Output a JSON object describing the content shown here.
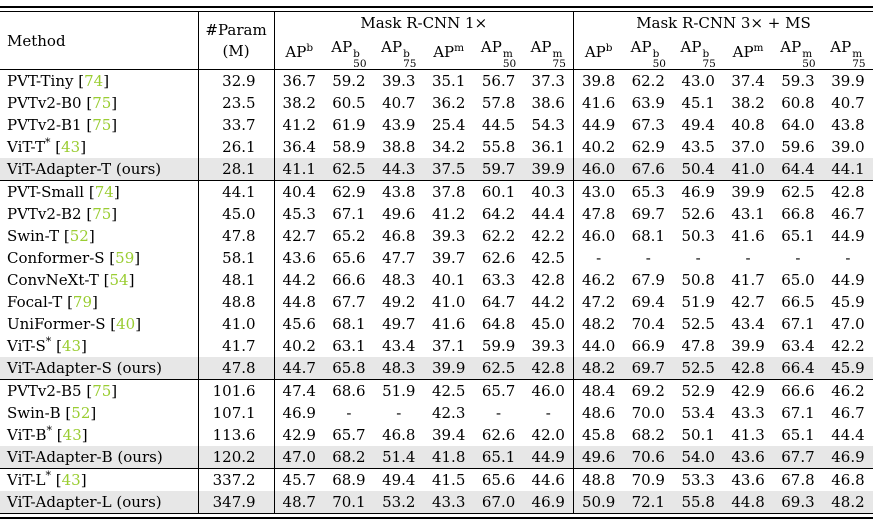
{
  "colors": {
    "citation_green": "#9ACD32",
    "highlight_row": "#E7E7E7",
    "rule_black": "#000000"
  },
  "header": {
    "method_label": "Method",
    "param_line1": "#Param",
    "param_line2": "(M)",
    "block1_label": "Mask R-CNN 1×",
    "block2_label": "Mask R-CNN 3× + MS",
    "metric_base": "AP",
    "metrics": [
      {
        "sup": "b",
        "sub": ""
      },
      {
        "sup": "b",
        "sub": "50"
      },
      {
        "sup": "b",
        "sub": "75"
      },
      {
        "sup": "m",
        "sub": ""
      },
      {
        "sup": "m",
        "sub": "50"
      },
      {
        "sup": "m",
        "sub": "75"
      }
    ],
    "ours_suffix": "(ours)"
  },
  "groups": [
    {
      "rows": [
        {
          "name": "PVT-Tiny",
          "star": false,
          "cite": "74",
          "ours": false,
          "highlight": false,
          "param": "32.9",
          "mask1x": [
            "36.7",
            "59.2",
            "39.3",
            "35.1",
            "56.7",
            "37.3"
          ],
          "mask3x": [
            "39.8",
            "62.2",
            "43.0",
            "37.4",
            "59.3",
            "39.9"
          ]
        },
        {
          "name": "PVTv2-B0",
          "star": false,
          "cite": "75",
          "ours": false,
          "highlight": false,
          "param": "23.5",
          "mask1x": [
            "38.2",
            "60.5",
            "40.7",
            "36.2",
            "57.8",
            "38.6"
          ],
          "mask3x": [
            "41.6",
            "63.9",
            "45.1",
            "38.2",
            "60.8",
            "40.7"
          ]
        },
        {
          "name": "PVTv2-B1",
          "star": false,
          "cite": "75",
          "ours": false,
          "highlight": false,
          "param": "33.7",
          "mask1x": [
            "41.2",
            "61.9",
            "43.9",
            "25.4",
            "44.5",
            "54.3"
          ],
          "mask3x": [
            "44.9",
            "67.3",
            "49.4",
            "40.8",
            "64.0",
            "43.8"
          ]
        },
        {
          "name": "ViT-T",
          "star": true,
          "cite": "43",
          "ours": false,
          "highlight": false,
          "param": "26.1",
          "mask1x": [
            "36.4",
            "58.9",
            "38.8",
            "34.2",
            "55.8",
            "36.1"
          ],
          "mask3x": [
            "40.2",
            "62.9",
            "43.5",
            "37.0",
            "59.6",
            "39.0"
          ]
        },
        {
          "name": "ViT-Adapter-T",
          "star": false,
          "cite": null,
          "ours": true,
          "highlight": true,
          "param": "28.1",
          "mask1x": [
            "41.1",
            "62.5",
            "44.3",
            "37.5",
            "59.7",
            "39.9"
          ],
          "mask3x": [
            "46.0",
            "67.6",
            "50.4",
            "41.0",
            "64.4",
            "44.1"
          ]
        }
      ]
    },
    {
      "rows": [
        {
          "name": "PVT-Small",
          "star": false,
          "cite": "74",
          "ours": false,
          "highlight": false,
          "param": "44.1",
          "mask1x": [
            "40.4",
            "62.9",
            "43.8",
            "37.8",
            "60.1",
            "40.3"
          ],
          "mask3x": [
            "43.0",
            "65.3",
            "46.9",
            "39.9",
            "62.5",
            "42.8"
          ]
        },
        {
          "name": "PVTv2-B2",
          "star": false,
          "cite": "75",
          "ours": false,
          "highlight": false,
          "param": "45.0",
          "mask1x": [
            "45.3",
            "67.1",
            "49.6",
            "41.2",
            "64.2",
            "44.4"
          ],
          "mask3x": [
            "47.8",
            "69.7",
            "52.6",
            "43.1",
            "66.8",
            "46.7"
          ]
        },
        {
          "name": "Swin-T",
          "star": false,
          "cite": "52",
          "ours": false,
          "highlight": false,
          "param": "47.8",
          "mask1x": [
            "42.7",
            "65.2",
            "46.8",
            "39.3",
            "62.2",
            "42.2"
          ],
          "mask3x": [
            "46.0",
            "68.1",
            "50.3",
            "41.6",
            "65.1",
            "44.9"
          ]
        },
        {
          "name": "Conformer-S",
          "star": false,
          "cite": "59",
          "ours": false,
          "highlight": false,
          "param": "58.1",
          "mask1x": [
            "43.6",
            "65.6",
            "47.7",
            "39.7",
            "62.6",
            "42.5"
          ],
          "mask3x": [
            "-",
            "-",
            "-",
            "-",
            "-",
            "-"
          ]
        },
        {
          "name": "ConvNeXt-T",
          "star": false,
          "cite": "54",
          "ours": false,
          "highlight": false,
          "param": "48.1",
          "mask1x": [
            "44.2",
            "66.6",
            "48.3",
            "40.1",
            "63.3",
            "42.8"
          ],
          "mask3x": [
            "46.2",
            "67.9",
            "50.8",
            "41.7",
            "65.0",
            "44.9"
          ]
        },
        {
          "name": "Focal-T",
          "star": false,
          "cite": "79",
          "ours": false,
          "highlight": false,
          "param": "48.8",
          "mask1x": [
            "44.8",
            "67.7",
            "49.2",
            "41.0",
            "64.7",
            "44.2"
          ],
          "mask3x": [
            "47.2",
            "69.4",
            "51.9",
            "42.7",
            "66.5",
            "45.9"
          ]
        },
        {
          "name": "UniFormer-S",
          "star": false,
          "cite": "40",
          "ours": false,
          "highlight": false,
          "param": "41.0",
          "mask1x": [
            "45.6",
            "68.1",
            "49.7",
            "41.6",
            "64.8",
            "45.0"
          ],
          "mask3x": [
            "48.2",
            "70.4",
            "52.5",
            "43.4",
            "67.1",
            "47.0"
          ]
        },
        {
          "name": "ViT-S",
          "star": true,
          "cite": "43",
          "ours": false,
          "highlight": false,
          "param": "41.7",
          "mask1x": [
            "40.2",
            "63.1",
            "43.4",
            "37.1",
            "59.9",
            "39.3"
          ],
          "mask3x": [
            "44.0",
            "66.9",
            "47.8",
            "39.9",
            "63.4",
            "42.2"
          ]
        },
        {
          "name": "ViT-Adapter-S",
          "star": false,
          "cite": null,
          "ours": true,
          "highlight": true,
          "param": "47.8",
          "mask1x": [
            "44.7",
            "65.8",
            "48.3",
            "39.9",
            "62.5",
            "42.8"
          ],
          "mask3x": [
            "48.2",
            "69.7",
            "52.5",
            "42.8",
            "66.4",
            "45.9"
          ]
        }
      ]
    },
    {
      "rows": [
        {
          "name": "PVTv2-B5",
          "star": false,
          "cite": "75",
          "ours": false,
          "highlight": false,
          "param": "101.6",
          "mask1x": [
            "47.4",
            "68.6",
            "51.9",
            "42.5",
            "65.7",
            "46.0"
          ],
          "mask3x": [
            "48.4",
            "69.2",
            "52.9",
            "42.9",
            "66.6",
            "46.2"
          ]
        },
        {
          "name": "Swin-B",
          "star": false,
          "cite": "52",
          "ours": false,
          "highlight": false,
          "param": "107.1",
          "mask1x": [
            "46.9",
            "-",
            "-",
            "42.3",
            "-",
            "-"
          ],
          "mask3x": [
            "48.6",
            "70.0",
            "53.4",
            "43.3",
            "67.1",
            "46.7"
          ]
        },
        {
          "name": "ViT-B",
          "star": true,
          "cite": "43",
          "ours": false,
          "highlight": false,
          "param": "113.6",
          "mask1x": [
            "42.9",
            "65.7",
            "46.8",
            "39.4",
            "62.6",
            "42.0"
          ],
          "mask3x": [
            "45.8",
            "68.2",
            "50.1",
            "41.3",
            "65.1",
            "44.4"
          ]
        },
        {
          "name": "ViT-Adapter-B",
          "star": false,
          "cite": null,
          "ours": true,
          "highlight": true,
          "param": "120.2",
          "mask1x": [
            "47.0",
            "68.2",
            "51.4",
            "41.8",
            "65.1",
            "44.9"
          ],
          "mask3x": [
            "49.6",
            "70.6",
            "54.0",
            "43.6",
            "67.7",
            "46.9"
          ]
        }
      ]
    },
    {
      "rows": [
        {
          "name": "ViT-L",
          "star": true,
          "cite": "43",
          "ours": false,
          "highlight": false,
          "param": "337.2",
          "mask1x": [
            "45.7",
            "68.9",
            "49.4",
            "41.5",
            "65.6",
            "44.6"
          ],
          "mask3x": [
            "48.8",
            "70.9",
            "53.3",
            "43.6",
            "67.8",
            "46.8"
          ]
        },
        {
          "name": "ViT-Adapter-L",
          "star": false,
          "cite": null,
          "ours": true,
          "highlight": true,
          "param": "347.9",
          "mask1x": [
            "48.7",
            "70.1",
            "53.2",
            "43.3",
            "67.0",
            "46.9"
          ],
          "mask3x": [
            "50.9",
            "72.1",
            "55.8",
            "44.8",
            "69.3",
            "48.2"
          ]
        }
      ]
    }
  ]
}
